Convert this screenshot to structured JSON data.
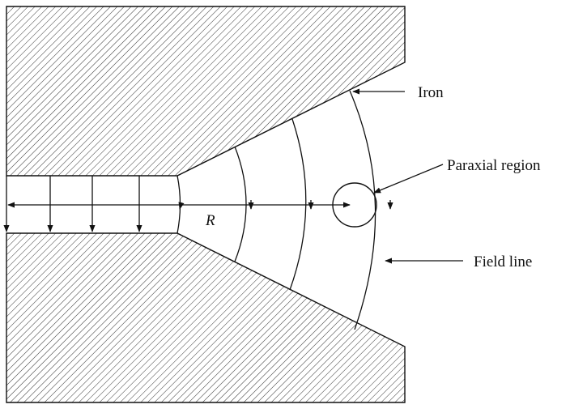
{
  "labels": {
    "iron": "Iron",
    "paraxial_region": "Paraxial region",
    "field_line": "Field line",
    "radius": "R"
  },
  "colors": {
    "ink": "#111111",
    "hatch": "#333333",
    "background": "#ffffff"
  }
}
